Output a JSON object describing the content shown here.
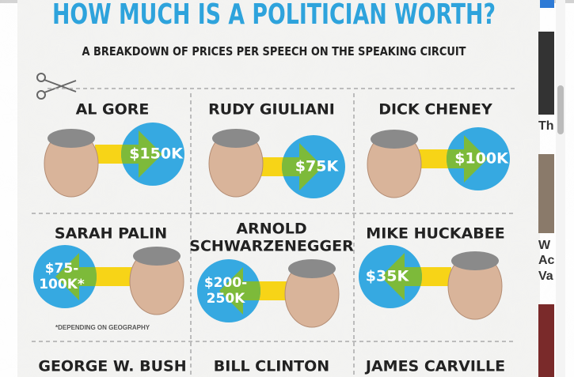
{
  "title": "HOW MUCH IS A POLITICIAN WORTH?",
  "subtitle": "A BREAKDOWN OF PRICES PER SPEECH ON THE SPEAKING CIRCUIT",
  "cells": [
    {
      "name": [
        "AL GORE"
      ],
      "price": [
        "$150K"
      ]
    },
    {
      "name": [
        "RUDY GIULIANI"
      ],
      "price": [
        "$75K"
      ]
    },
    {
      "name": [
        "DICK CHENEY"
      ],
      "price": [
        "$100K"
      ]
    },
    {
      "name": [
        "SARAH PALIN"
      ],
      "price": [
        "$75-",
        "100K*"
      ]
    },
    {
      "name": [
        "ARNOLD",
        "SCHWARZENEGGER"
      ],
      "price": [
        "$200-",
        "250K"
      ]
    },
    {
      "name": [
        "MIKE HUCKABEE"
      ],
      "price": [
        "$35K"
      ]
    }
  ],
  "footnote": "*DEPENDING ON GEOGRAPHY",
  "next_row": [
    "GEORGE W. BUSH",
    "BILL CLINTON",
    "JAMES CARVILLE"
  ],
  "sidebar": [
    "Th",
    "W",
    "Ac",
    "Va"
  ]
}
